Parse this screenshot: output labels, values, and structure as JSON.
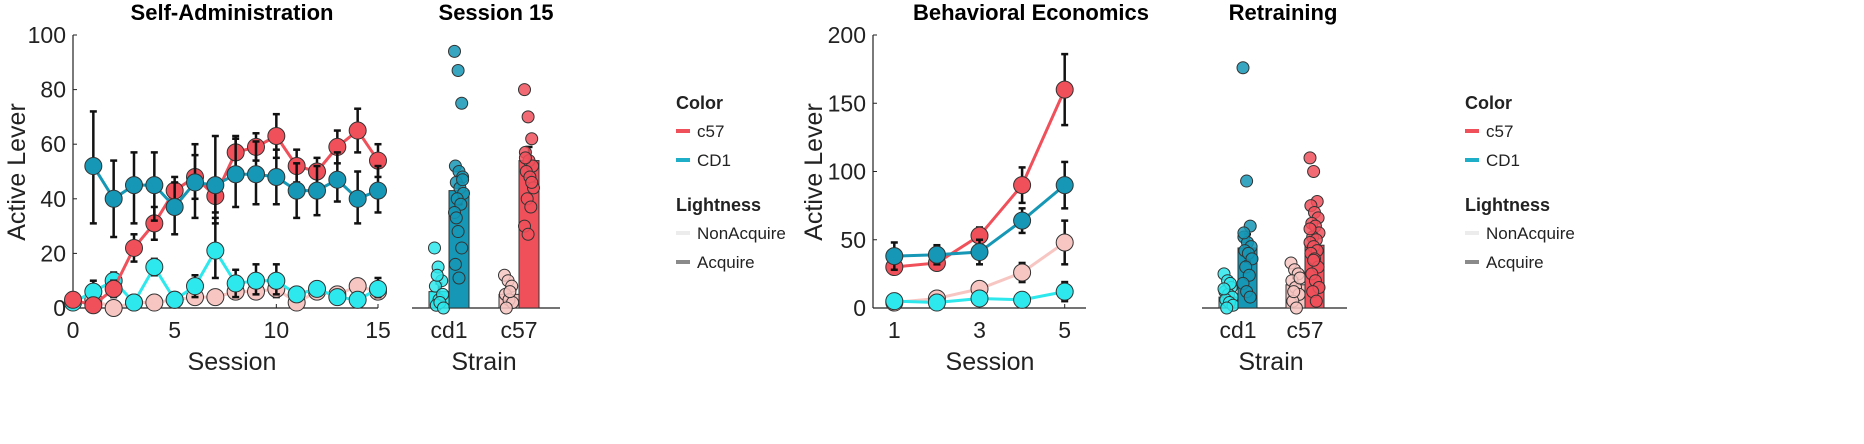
{
  "colors": {
    "c57": "#f0505a",
    "c57_light": "#f7c6c2",
    "cd1": "#1597b5",
    "cd1_light": "#2de8ec",
    "legend_nonacquire": "#ececec",
    "legend_acquire": "#8a8a8a",
    "errorbar": "#111111",
    "axis": "#222222"
  },
  "legends": [
    {
      "color_title": "Color",
      "color_items": [
        {
          "label": "c57",
          "color": "#f0505a"
        },
        {
          "label": "CD1",
          "color": "#1eaec8"
        }
      ],
      "lightness_title": "Lightness",
      "lightness_items": [
        {
          "label": "NonAcquire",
          "color": "#ececec"
        },
        {
          "label": "Acquire",
          "color": "#8a8a8a"
        }
      ]
    },
    {
      "color_title": "Color",
      "color_items": [
        {
          "label": "c57",
          "color": "#f0505a"
        },
        {
          "label": "CD1",
          "color": "#1eaec8"
        }
      ],
      "lightness_title": "Lightness",
      "lightness_items": [
        {
          "label": "NonAcquire",
          "color": "#ececec"
        },
        {
          "label": "Acquire",
          "color": "#8a8a8a"
        }
      ]
    }
  ],
  "chart_data": [
    {
      "type": "line",
      "title": "Self-Administration",
      "xlabel": "Session",
      "ylabel": "Active Lever",
      "xlim": [
        0,
        15
      ],
      "ylim": [
        0,
        100
      ],
      "xticks": [
        0,
        5,
        10,
        15
      ],
      "yticks": [
        0,
        20,
        40,
        60,
        80,
        100
      ],
      "series": [
        {
          "group": "c57-acquire",
          "color": "#f0505a",
          "x": [
            0,
            1,
            2,
            3,
            4,
            5,
            6,
            7,
            8,
            9,
            10,
            11,
            12,
            13,
            14,
            15
          ],
          "y": [
            3,
            1,
            7,
            22,
            31,
            43,
            48,
            41,
            57,
            59,
            63,
            52,
            50,
            59,
            65,
            54
          ],
          "err_hi": [
            2,
            2,
            3,
            5,
            6,
            5,
            8,
            6,
            6,
            5,
            8,
            6,
            5,
            6,
            8,
            6
          ],
          "err_lo": [
            2,
            2,
            3,
            5,
            6,
            5,
            8,
            6,
            6,
            5,
            8,
            6,
            5,
            6,
            8,
            6
          ]
        },
        {
          "group": "cd1-acquire",
          "color": "#1597b5",
          "x": [
            1,
            2,
            3,
            4,
            5,
            6,
            7,
            8,
            9,
            10,
            11,
            12,
            13,
            14,
            15
          ],
          "y": [
            52,
            40,
            45,
            45,
            37,
            46,
            45,
            49,
            49,
            48,
            43,
            43,
            47,
            40,
            43
          ],
          "err_hi": [
            20,
            14,
            12,
            12,
            9,
            14,
            18,
            13,
            12,
            10,
            10,
            9,
            10,
            10,
            9
          ],
          "err_lo": [
            21,
            14,
            14,
            13,
            10,
            13,
            14,
            12,
            11,
            10,
            10,
            9,
            8,
            9,
            8
          ]
        },
        {
          "group": "c57-nonacquire",
          "color": "#f7c6c2",
          "x": [
            1,
            2,
            3,
            4,
            5,
            6,
            7,
            8,
            9,
            10,
            11,
            12,
            13,
            14,
            15
          ],
          "y": [
            3,
            0,
            2,
            2,
            3,
            4,
            4,
            6,
            6,
            7,
            2,
            6,
            5,
            8,
            6
          ],
          "err_hi": [
            2,
            2,
            2,
            2,
            2,
            2,
            2,
            2,
            2,
            3,
            2,
            2,
            2,
            2,
            2
          ],
          "err_lo": [
            2,
            2,
            2,
            2,
            2,
            2,
            2,
            2,
            2,
            3,
            2,
            2,
            2,
            2,
            2
          ]
        },
        {
          "group": "cd1-nonacquire",
          "color": "#2de8ec",
          "x": [
            0,
            1,
            2,
            3,
            4,
            5,
            6,
            7,
            8,
            9,
            10,
            11,
            12,
            13,
            14,
            15
          ],
          "y": [
            2,
            6,
            10,
            2,
            15,
            3,
            8,
            21,
            9,
            10,
            10,
            5,
            7,
            4,
            3,
            7
          ],
          "err_hi": [
            1,
            4,
            3,
            1,
            3,
            2,
            4,
            12,
            5,
            6,
            6,
            2,
            2,
            2,
            2,
            4
          ],
          "err_lo": [
            1,
            3,
            3,
            1,
            3,
            2,
            4,
            10,
            5,
            5,
            5,
            2,
            2,
            2,
            2,
            3
          ]
        }
      ]
    },
    {
      "type": "bar",
      "title": "Session 15",
      "xlabel": "Strain",
      "ylabel": "",
      "ylim": [
        0,
        100
      ],
      "categories": [
        "cd1",
        "c57"
      ],
      "bars": [
        {
          "cat": 0,
          "offset": -0.5,
          "value": 6,
          "color": "#2de8ec",
          "err": 3,
          "points": [
            22,
            15,
            10,
            8,
            3,
            5,
            1,
            2,
            0,
            12
          ]
        },
        {
          "cat": 0,
          "offset": 0.5,
          "value": 43,
          "color": "#1597b5",
          "err": 5,
          "points": [
            94,
            87,
            75,
            52,
            50,
            48,
            46,
            44,
            42,
            40,
            38,
            35,
            28,
            22,
            16,
            11,
            47,
            33
          ]
        },
        {
          "cat": 1,
          "offset": -0.5,
          "value": 5,
          "color": "#f7c6c2",
          "err": 2,
          "points": [
            12,
            10,
            8,
            5,
            3,
            2,
            0,
            6
          ]
        },
        {
          "cat": 1,
          "offset": 0.5,
          "value": 54,
          "color": "#f0505a",
          "err": 5,
          "points": [
            80,
            70,
            62,
            57,
            54,
            52,
            50,
            48,
            44,
            40,
            37,
            30,
            27,
            46,
            55
          ]
        }
      ]
    },
    {
      "type": "line",
      "title": "Behavioral Economics",
      "xlabel": "Session",
      "ylabel": "Active Lever",
      "xlim": [
        0.5,
        5.5
      ],
      "ylim": [
        0,
        200
      ],
      "xticks": [
        1,
        3,
        5
      ],
      "yticks": [
        0,
        50,
        100,
        150,
        200
      ],
      "series": [
        {
          "group": "c57-acquire",
          "color": "#f0505a",
          "x": [
            1,
            2,
            3,
            4,
            5
          ],
          "y": [
            30,
            33,
            53,
            90,
            160
          ],
          "err_hi": [
            5,
            4,
            6,
            13,
            26
          ],
          "err_lo": [
            5,
            4,
            6,
            13,
            26
          ]
        },
        {
          "group": "cd1-acquire",
          "color": "#1597b5",
          "x": [
            1,
            2,
            3,
            4,
            5
          ],
          "y": [
            38,
            39,
            41,
            64,
            90
          ],
          "err_hi": [
            10,
            7,
            9,
            9,
            17
          ],
          "err_lo": [
            10,
            7,
            9,
            9,
            17
          ]
        },
        {
          "group": "c57-nonacquire",
          "color": "#f7c6c2",
          "x": [
            1,
            2,
            3,
            4,
            5
          ],
          "y": [
            4,
            7,
            14,
            26,
            48
          ],
          "err_hi": [
            2,
            2,
            4,
            7,
            16
          ],
          "err_lo": [
            2,
            2,
            4,
            7,
            16
          ]
        },
        {
          "group": "cd1-nonacquire",
          "color": "#2de8ec",
          "x": [
            1,
            2,
            3,
            4,
            5
          ],
          "y": [
            5,
            4,
            7,
            6,
            12
          ],
          "err_hi": [
            2,
            2,
            3,
            2,
            7
          ],
          "err_lo": [
            2,
            2,
            3,
            2,
            7
          ]
        }
      ]
    },
    {
      "type": "bar",
      "title": "Retraining",
      "xlabel": "Strain",
      "ylabel": "",
      "ylim": [
        0,
        200
      ],
      "categories": [
        "cd1",
        "c57"
      ],
      "bars": [
        {
          "cat": 0,
          "offset": -0.5,
          "value": 8,
          "color": "#2de8ec",
          "err": 4,
          "points": [
            25,
            20,
            15,
            12,
            10,
            8,
            6,
            4,
            2,
            0,
            18,
            14
          ]
        },
        {
          "cat": 0,
          "offset": 0.5,
          "value": 44,
          "color": "#1597b5",
          "err": 10,
          "points": [
            176,
            93,
            60,
            52,
            48,
            45,
            42,
            40,
            36,
            30,
            24,
            18,
            12,
            8,
            55
          ]
        },
        {
          "cat": 1,
          "offset": -0.5,
          "value": 17,
          "color": "#f7c6c2",
          "err": 5,
          "points": [
            33,
            28,
            25,
            20,
            15,
            10,
            5,
            0,
            22,
            12
          ]
        },
        {
          "cat": 1,
          "offset": 0.5,
          "value": 46,
          "color": "#f0505a",
          "err": 9,
          "points": [
            110,
            100,
            78,
            75,
            70,
            66,
            62,
            60,
            55,
            52,
            50,
            48,
            45,
            42,
            40,
            36,
            30,
            25,
            20,
            15,
            12,
            5,
            58,
            35
          ]
        }
      ]
    }
  ]
}
